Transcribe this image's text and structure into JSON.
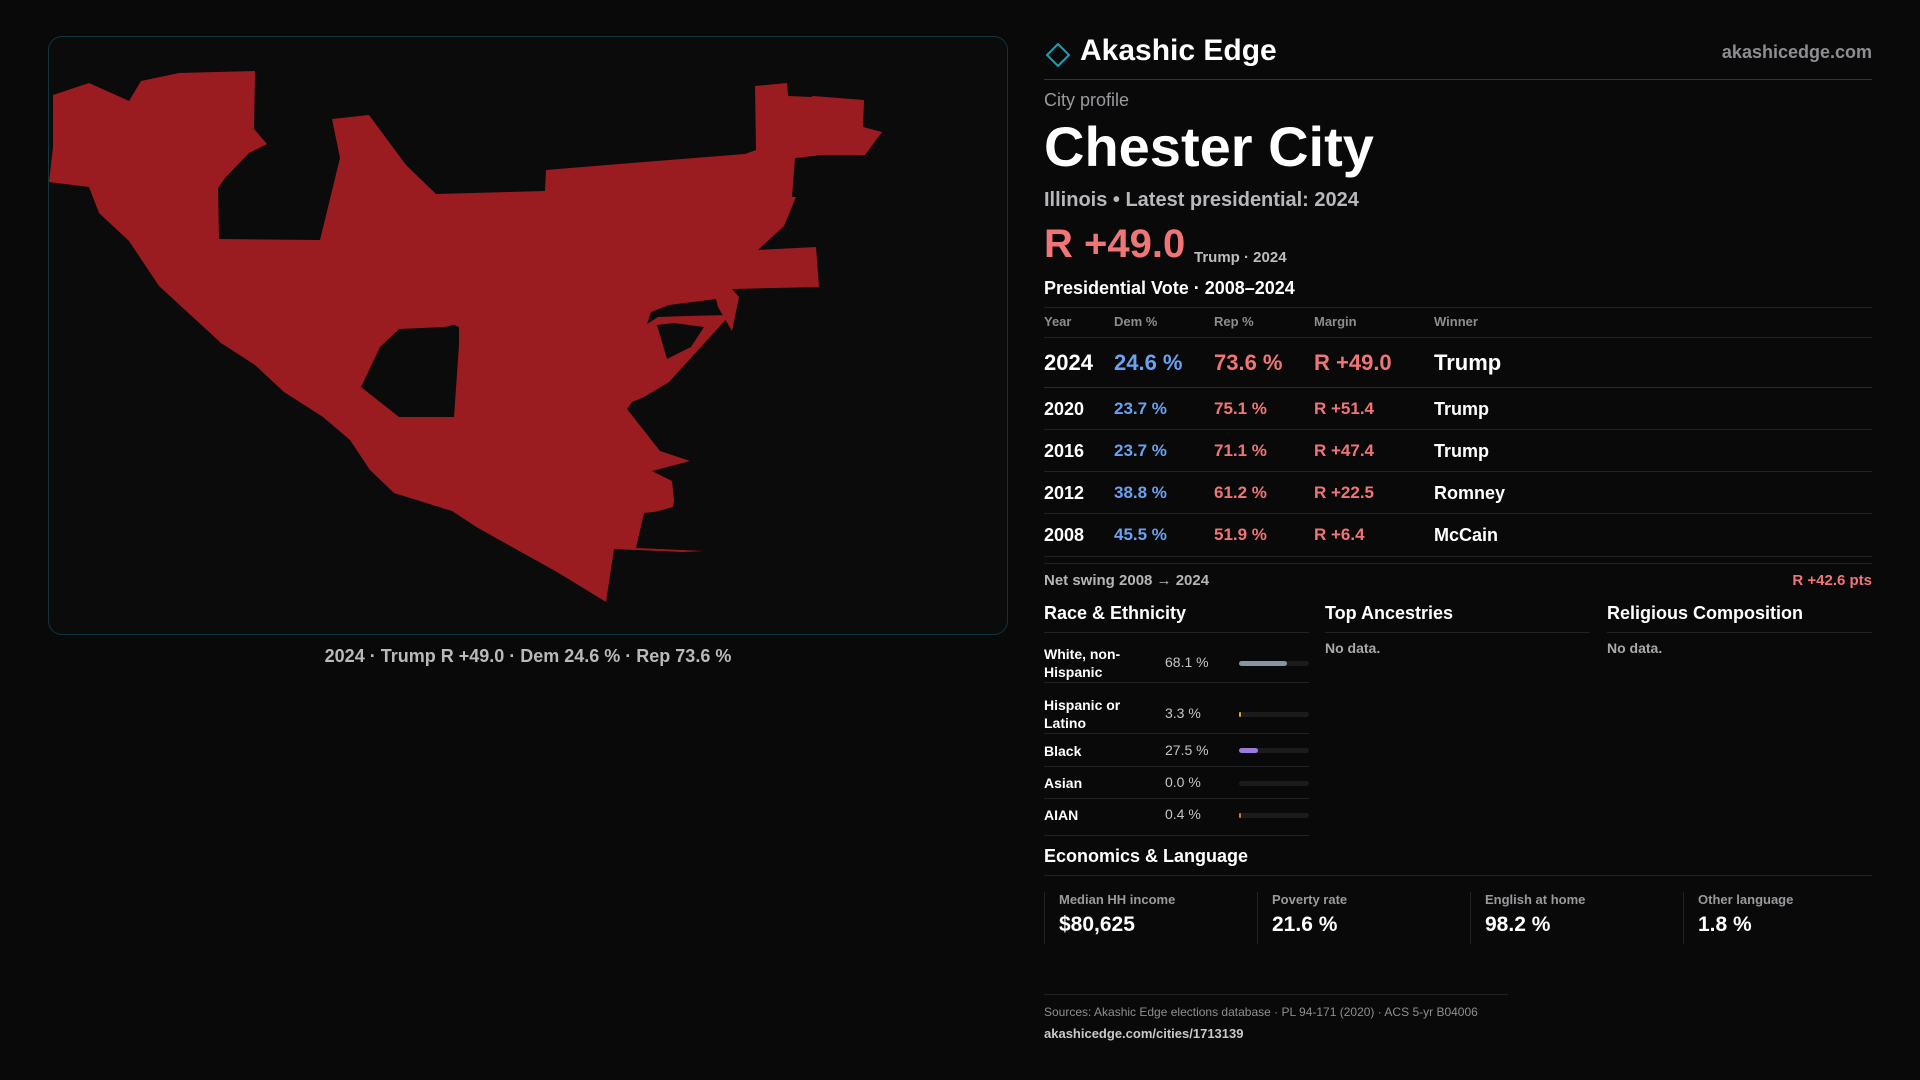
{
  "map": {
    "fill_color": "#9b1c20",
    "caption": "2024 · Trump R +49.0 · Dem 24.6 % · Rep 73.6 %"
  },
  "brand": {
    "name": "Akashic Edge",
    "url": "akashicedge.com",
    "icon": "diamond-outline-icon",
    "accent": "#1aa0b0"
  },
  "profile": {
    "kicker": "City profile",
    "city": "Chester City",
    "subtitle": "Illinois • Latest presidential: 2024",
    "margin": "R +49.0",
    "margin_note": "Trump · 2024"
  },
  "votes": {
    "heading": "Presidential Vote · 2008–2024",
    "headers": {
      "year": "Year",
      "dem": "Dem %",
      "rep": "Rep %",
      "margin": "Margin",
      "winner": "Winner"
    },
    "rows": [
      {
        "year": "2024",
        "dem": "24.6 %",
        "rep": "73.6 %",
        "margin": "R +49.0",
        "winner": "Trump"
      },
      {
        "year": "2020",
        "dem": "23.7 %",
        "rep": "75.1 %",
        "margin": "R +51.4",
        "winner": "Trump"
      },
      {
        "year": "2016",
        "dem": "23.7 %",
        "rep": "71.1 %",
        "margin": "R +47.4",
        "winner": "Trump"
      },
      {
        "year": "2012",
        "dem": "38.8 %",
        "rep": "61.2 %",
        "margin": "R +22.5",
        "winner": "Romney"
      },
      {
        "year": "2008",
        "dem": "45.5 %",
        "rep": "51.9 %",
        "margin": "R +6.4",
        "winner": "McCain"
      }
    ],
    "swing_label": "Net swing 2008 → 2024",
    "swing_value": "R +42.6 pts",
    "dem_color": "#6aa2f0",
    "rep_color": "#f07576"
  },
  "race": {
    "heading": "Race & Ethnicity",
    "rows": [
      {
        "label": "White, non-Hispanic",
        "pct": "68.1 %",
        "share": 0.681,
        "color": "#8a93a6"
      },
      {
        "label": "Hispanic or Latino",
        "pct": "3.3 %",
        "share": 0.033,
        "color": "#e8a23a"
      },
      {
        "label": "Black",
        "pct": "27.5 %",
        "share": 0.275,
        "color": "#9b7be0"
      },
      {
        "label": "Asian",
        "pct": "0.0 %",
        "share": 0.0,
        "color": "#4bb3a8"
      },
      {
        "label": "AIAN",
        "pct": "0.4 %",
        "share": 0.004,
        "color": "#d9743a"
      }
    ]
  },
  "ancestries": {
    "heading": "Top Ancestries",
    "empty": "No data."
  },
  "religion": {
    "heading": "Religious Composition",
    "empty": "No data."
  },
  "economics": {
    "heading": "Economics & Language",
    "items": [
      {
        "label": "Median HH income",
        "value": "$80,625"
      },
      {
        "label": "Poverty rate",
        "value": "21.6 %"
      },
      {
        "label": "English at home",
        "value": "98.2 %"
      },
      {
        "label": "Other language",
        "value": "1.8 %"
      }
    ]
  },
  "footer": {
    "sources": "Sources: Akashic Edge elections database · PL 94-171 (2020) · ACS 5-yr B04006",
    "url": "akashicedge.com/cities/1713139"
  }
}
